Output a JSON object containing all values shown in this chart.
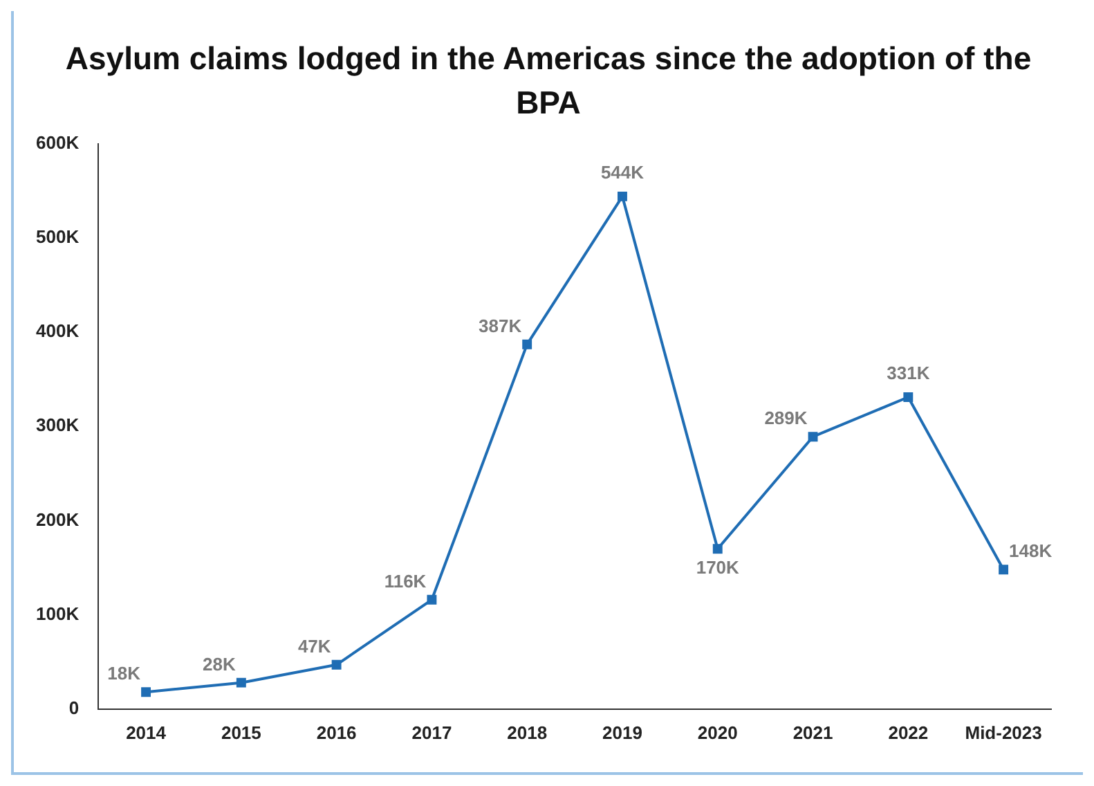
{
  "chart_data": {
    "type": "line",
    "title": "Asylum claims lodged in the Americas since the adoption of the BPA",
    "categories": [
      "2014",
      "2015",
      "2016",
      "2017",
      "2018",
      "2019",
      "2020",
      "2021",
      "2022",
      "Mid-2023"
    ],
    "series": [
      {
        "color": "#1f6db4",
        "values": [
          18000,
          28000,
          47000,
          116000,
          387000,
          544000,
          170000,
          289000,
          331000,
          148000
        ],
        "value_labels": [
          "18K",
          "28K",
          "47K",
          "116K",
          "387K",
          "544K",
          "170K",
          "289K",
          "331K",
          "148K"
        ]
      }
    ],
    "ylim": [
      0,
      600000
    ],
    "yticks": [
      {
        "value": 0,
        "label": "0"
      },
      {
        "value": 100000,
        "label": "100K"
      },
      {
        "value": 200000,
        "label": "200K"
      },
      {
        "value": 300000,
        "label": "300K"
      },
      {
        "value": 400000,
        "label": "400K"
      },
      {
        "value": 500000,
        "label": "500K"
      },
      {
        "value": 600000,
        "label": "600K"
      }
    ],
    "grid": false,
    "legend": false,
    "marker": "square",
    "line_style": "solid"
  }
}
